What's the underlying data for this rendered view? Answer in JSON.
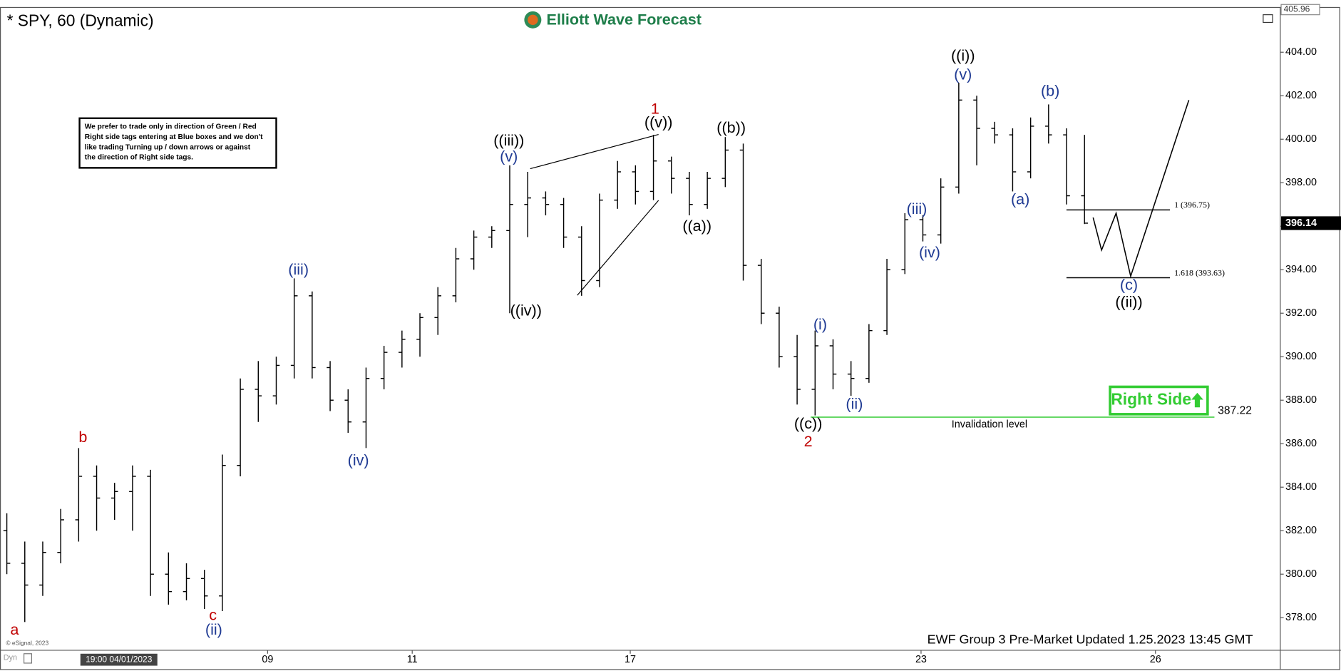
{
  "chart_data": {
    "type": "ohlc",
    "title": "* SPY, 60 (Dynamic)",
    "logo": "Elliott Wave Forecast",
    "footer": "EWF Group 3 Pre-Market Updated 1.25.2023 13:45 GMT",
    "copyright": "© eSignal, 2023",
    "corner_label": "Dyn",
    "date_label": "19:00 04/01/2023",
    "note": [
      "We prefer to trade only in direction of Green / Red",
      "Right side tags entering at Blue boxes and we don't",
      "like trading Turning up / down arrows or against",
      "the direction of Right side tags."
    ],
    "right_side": "Right Side",
    "color": "#000000",
    "open": [
      382,
      380.5,
      379.5,
      381,
      382.5,
      384.5,
      383.5,
      383.8,
      384.5,
      380,
      379.2,
      379.8,
      379,
      385,
      388.5,
      388.2,
      389.6,
      392.8,
      389.5,
      388,
      387,
      389,
      390.2,
      390.8,
      391.8,
      392.8,
      394.5,
      395.5,
      395.8,
      397,
      397.3,
      397,
      395.5,
      393.5,
      397.2,
      398.5,
      397.6,
      399,
      398.2,
      397,
      398.2,
      399.5,
      394.2,
      392,
      390,
      388.5,
      390.5,
      389.2,
      389,
      391.2,
      394,
      396.3,
      395.6,
      397.8,
      401.8,
      400.5,
      400.2,
      398.5,
      400.6,
      400.2,
      397.4
    ],
    "high": [
      382.8,
      381.5,
      381.5,
      383,
      385.8,
      385,
      384.2,
      385,
      384.8,
      381,
      380.5,
      380.2,
      385.5,
      389,
      389.8,
      390,
      393.6,
      393,
      389.8,
      388.5,
      389.5,
      390.5,
      391.2,
      392,
      393.2,
      395,
      395.8,
      396,
      398.8,
      398.5,
      397.6,
      397.3,
      396,
      397.5,
      399,
      398.8,
      400.2,
      399.2,
      398.5,
      398.5,
      400.1,
      399.8,
      394.5,
      392.3,
      391,
      391.2,
      390.8,
      389.8,
      391.5,
      394.5,
      396.6,
      396.5,
      398.2,
      402.6,
      402,
      400.8,
      400.5,
      401,
      401.6,
      400.5,
      400.2
    ],
    "low": [
      380,
      377.8,
      379,
      380.5,
      381.5,
      382,
      382.5,
      382,
      379,
      378.6,
      378.8,
      378.4,
      378.3,
      384.5,
      387,
      387.8,
      389,
      389,
      387.5,
      386.5,
      385.8,
      388.5,
      389.5,
      390,
      391,
      392.5,
      394,
      395,
      392,
      395.5,
      396.5,
      395,
      392.8,
      393.2,
      396.8,
      397,
      397.2,
      397.5,
      396.5,
      396.8,
      397.8,
      393.5,
      391.5,
      389.5,
      387.8,
      387.3,
      388.5,
      388.2,
      388.8,
      391,
      393.8,
      395.3,
      395.2,
      397.5,
      398.8,
      399.8,
      397.6,
      398.2,
      399.8,
      397,
      396.1
    ],
    "close": [
      380.5,
      379.5,
      381,
      382.5,
      384.5,
      383.5,
      383.8,
      384.5,
      380,
      379.2,
      379.8,
      379,
      385,
      388.5,
      388.2,
      389.6,
      392.8,
      389.5,
      388,
      387,
      389,
      390.2,
      390.8,
      391.8,
      392.8,
      394.5,
      395.5,
      395.8,
      397,
      397.3,
      397,
      395.5,
      393.5,
      397.2,
      398.5,
      397.6,
      399,
      398.2,
      397,
      398.2,
      399.5,
      394.2,
      392,
      390,
      388.5,
      390.5,
      389.2,
      389,
      391.2,
      394,
      396.3,
      395.6,
      397.8,
      401.8,
      400.5,
      400.2,
      398.5,
      400.6,
      400.2,
      397.4,
      396.14
    ],
    "xlim": [
      -0.38,
      70.9
    ],
    "xticks": [
      {
        "value": 14.52,
        "label": "09"
      },
      {
        "value": 22.57,
        "label": "11"
      },
      {
        "value": 34.71,
        "label": "17"
      },
      {
        "value": 50.9,
        "label": "23"
      },
      {
        "value": 63.95,
        "label": "26"
      }
    ],
    "ylim": [
      376.5,
      406.0
    ],
    "yticks": [
      {
        "value": 378,
        "label": "378.00"
      },
      {
        "value": 380,
        "label": "380.00"
      },
      {
        "value": 382,
        "label": "382.00"
      },
      {
        "value": 384,
        "label": "384.00"
      },
      {
        "value": 386,
        "label": "386.00"
      },
      {
        "value": 388,
        "label": "388.00"
      },
      {
        "value": 390,
        "label": "390.00"
      },
      {
        "value": 392,
        "label": "392.00"
      },
      {
        "value": 394,
        "label": "394.00"
      },
      {
        "value": 396,
        "label": "396.00"
      },
      {
        "value": 398,
        "label": "398.00"
      },
      {
        "value": 400,
        "label": "400.00"
      },
      {
        "value": 402,
        "label": "402.00"
      },
      {
        "value": 404,
        "label": "404.00"
      }
    ],
    "last_price": {
      "value": 396.14,
      "label": "396.14"
    },
    "top_price": {
      "value": 405.96,
      "label": "405.96"
    },
    "levels": [
      {
        "value": 396.75,
        "label": "1 (396.75)"
      },
      {
        "value": 393.63,
        "label": "1.618 (393.63)"
      }
    ],
    "invalidation": {
      "value": 387.22,
      "label": "387.22",
      "text": "Invalidation level",
      "color": "#33cc33"
    },
    "projection": {
      "x": [
        60.48,
        60.95,
        61.76,
        62.57,
        65.81
      ],
      "values": [
        396.4,
        394.9,
        396.6,
        393.7,
        401.8
      ]
    },
    "annotations": [
      {
        "text": "a",
        "color": "#c00000"
      },
      {
        "text": "b",
        "color": "#c00000"
      },
      {
        "text": "c",
        "color": "#c00000"
      },
      {
        "text": "(ii)",
        "color": "#1f3a93"
      },
      {
        "text": "(iii)",
        "color": "#1f3a93"
      },
      {
        "text": "(iv)",
        "color": "#1f3a93"
      },
      {
        "text": "((iii))",
        "color": "#000000"
      },
      {
        "text": "(v)",
        "color": "#1f3a93"
      },
      {
        "text": "((iv))",
        "color": "#000000"
      },
      {
        "text": "1",
        "color": "#c00000"
      },
      {
        "text": "((v))",
        "color": "#000000"
      },
      {
        "text": "((a))",
        "color": "#000000"
      },
      {
        "text": "((b))",
        "color": "#000000"
      },
      {
        "text": "((c))",
        "color": "#000000"
      },
      {
        "text": "2",
        "color": "#c00000"
      },
      {
        "text": "(i)",
        "color": "#1f3a93"
      },
      {
        "text": "(ii)",
        "color": "#1f3a93"
      },
      {
        "text": "(iii)",
        "color": "#1f3a93"
      },
      {
        "text": "(iv)",
        "color": "#1f3a93"
      },
      {
        "text": "((i))",
        "color": "#000000"
      },
      {
        "text": "(v)",
        "color": "#1f3a93"
      },
      {
        "text": "(a)",
        "color": "#1f3a93"
      },
      {
        "text": "(b)",
        "color": "#1f3a93"
      },
      {
        "text": "(c)",
        "color": "#1f3a93"
      },
      {
        "text": "((ii))",
        "color": "#000000"
      }
    ]
  }
}
